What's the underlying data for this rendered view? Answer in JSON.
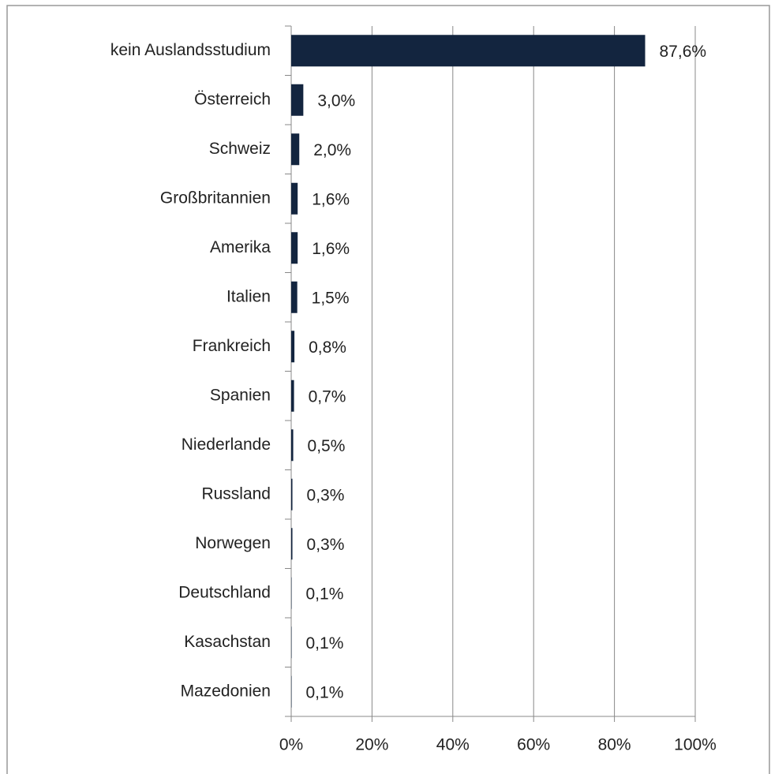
{
  "chart_data": {
    "type": "bar",
    "orientation": "horizontal",
    "categories": [
      "kein Auslandsstudium",
      "Österreich",
      "Schweiz",
      "Großbritannien",
      "Amerika",
      "Italien",
      "Frankreich",
      "Spanien",
      "Niederlande",
      "Russland",
      "Norwegen",
      "Deutschland",
      "Kasachstan",
      "Mazedonien"
    ],
    "values": [
      87.6,
      3.0,
      2.0,
      1.6,
      1.6,
      1.5,
      0.8,
      0.7,
      0.5,
      0.3,
      0.3,
      0.1,
      0.1,
      0.1
    ],
    "value_labels": [
      "87,6%",
      "3,0%",
      "2,0%",
      "1,6%",
      "1,6%",
      "1,5%",
      "0,8%",
      "0,7%",
      "0,5%",
      "0,3%",
      "0,3%",
      "0,1%",
      "0,1%",
      "0,1%"
    ],
    "color": "#13253f",
    "xlim": [
      0,
      100
    ],
    "xticks": [
      {
        "value": 0,
        "label": "0%"
      },
      {
        "value": 20,
        "label": "20%"
      },
      {
        "value": 40,
        "label": "40%"
      },
      {
        "value": 60,
        "label": "60%"
      },
      {
        "value": 80,
        "label": "80%"
      },
      {
        "value": 100,
        "label": "100%"
      }
    ],
    "grid": true
  }
}
